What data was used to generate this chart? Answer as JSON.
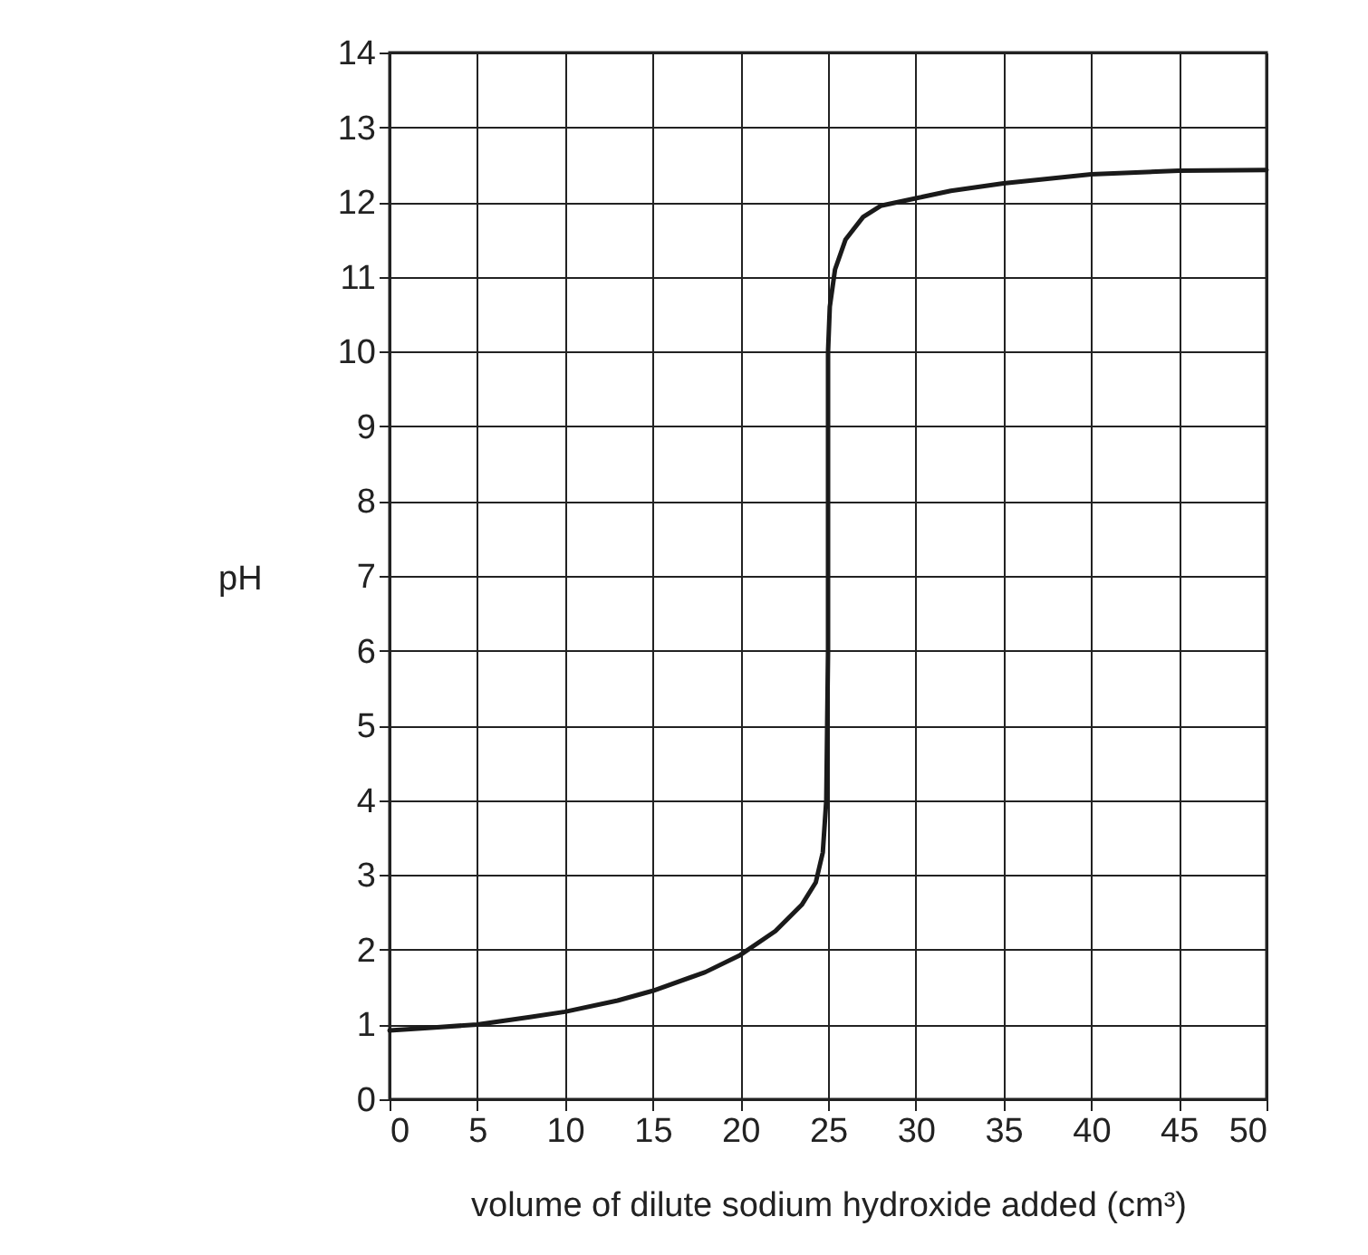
{
  "chart_data": {
    "type": "line",
    "xlabel": "volume of dilute sodium hydroxide added (cm³)",
    "ylabel": "pH",
    "x": [
      0,
      2,
      5,
      8,
      10,
      13,
      15,
      18,
      20,
      22,
      23.5,
      24.3,
      24.7,
      24.9,
      25,
      25,
      25,
      25.1,
      25.4,
      26,
      27,
      28,
      30,
      32,
      35,
      40,
      45,
      50
    ],
    "series": [
      {
        "color": "#1a1a1a",
        "values": [
          0.92,
          0.95,
          1.0,
          1.1,
          1.17,
          1.32,
          1.45,
          1.7,
          1.93,
          2.25,
          2.6,
          2.9,
          3.3,
          4.0,
          6,
          8,
          10,
          10.6,
          11.1,
          11.5,
          11.8,
          11.95,
          12.05,
          12.15,
          12.25,
          12.37,
          12.42,
          12.43
        ]
      }
    ],
    "xlim": [
      0,
      50
    ],
    "xticks": [
      0,
      5,
      10,
      15,
      20,
      25,
      30,
      35,
      40,
      45,
      50
    ],
    "ylim": [
      0,
      14
    ],
    "yticks": [
      0,
      1,
      2,
      3,
      4,
      5,
      6,
      7,
      8,
      9,
      10,
      11,
      12,
      13,
      14
    ],
    "grid": true,
    "line_style": "solid",
    "marker": "none"
  }
}
